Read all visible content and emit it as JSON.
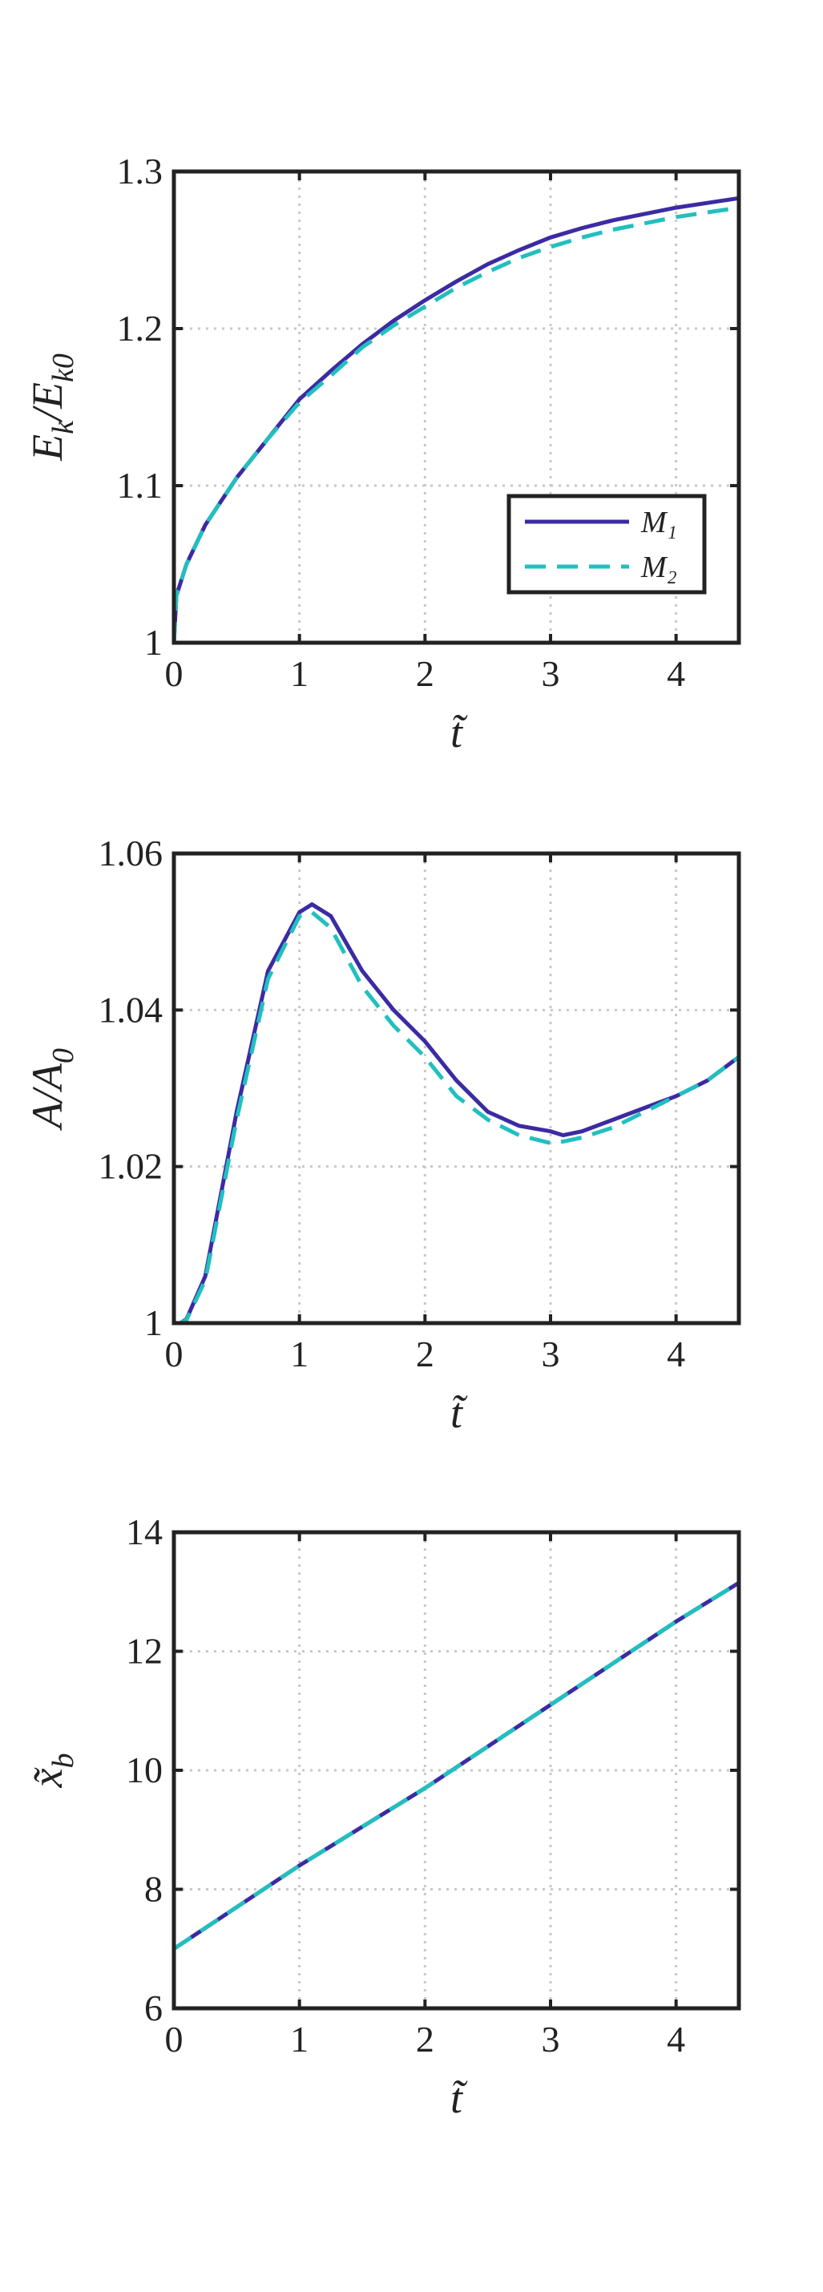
{
  "chart_data": [
    {
      "type": "line",
      "ylabel": [
        {
          "t": "E"
        },
        {
          "t": "k",
          "sub": true
        },
        {
          "t": "/E"
        },
        {
          "t": "k0",
          "sub": true
        }
      ],
      "xlabel": "t̃",
      "x": [
        0,
        0.02,
        0.1,
        0.25,
        0.5,
        0.75,
        1,
        1.25,
        1.5,
        1.75,
        2,
        2.25,
        2.5,
        2.75,
        3,
        3.25,
        3.5,
        3.75,
        4,
        4.25,
        4.5
      ],
      "series": [
        {
          "name": "M₁",
          "color": "#3b2ba3",
          "dash": false,
          "values": [
            1,
            1.03,
            1.05,
            1.075,
            1.105,
            1.13,
            1.155,
            1.173,
            1.19,
            1.205,
            1.218,
            1.23,
            1.241,
            1.25,
            1.258,
            1.264,
            1.269,
            1.273,
            1.277,
            1.28,
            1.283
          ]
        },
        {
          "name": "M₂",
          "color": "#22bfbf",
          "dash": true,
          "values": [
            1,
            1.03,
            1.05,
            1.075,
            1.105,
            1.13,
            1.153,
            1.17,
            1.188,
            1.202,
            1.214,
            1.226,
            1.236,
            1.245,
            1.252,
            1.258,
            1.263,
            1.267,
            1.271,
            1.274,
            1.277
          ]
        }
      ],
      "xlim": [
        0,
        4.5
      ],
      "xticks": [
        0,
        1,
        2,
        3,
        4
      ],
      "ylim": [
        1,
        1.3
      ],
      "yticks": [
        1,
        1.1,
        1.2,
        1.3
      ],
      "grid": true,
      "legend": "lower right"
    },
    {
      "type": "line",
      "ylabel": [
        {
          "t": "A/A"
        },
        {
          "t": "0",
          "sub": true
        }
      ],
      "xlabel": "t̃",
      "x": [
        0,
        0.05,
        0.1,
        0.25,
        0.5,
        0.75,
        1,
        1.1,
        1.25,
        1.5,
        1.75,
        2,
        2.25,
        2.5,
        2.75,
        3,
        3.1,
        3.25,
        3.5,
        3.75,
        4,
        4.25,
        4.5
      ],
      "series": [
        {
          "name": "M₁",
          "color": "#3b2ba3",
          "dash": false,
          "values": [
            1,
            1,
            1.0005,
            1.006,
            1.027,
            1.045,
            1.0525,
            1.0535,
            1.052,
            1.045,
            1.04,
            1.036,
            1.031,
            1.027,
            1.0252,
            1.0245,
            1.024,
            1.0245,
            1.026,
            1.0275,
            1.029,
            1.031,
            1.034
          ]
        },
        {
          "name": "M₂",
          "color": "#22bfbf",
          "dash": true,
          "values": [
            1,
            1,
            1.0004,
            1.0055,
            1.026,
            1.044,
            1.052,
            1.0525,
            1.0505,
            1.043,
            1.038,
            1.034,
            1.029,
            1.026,
            1.024,
            1.023,
            1.0232,
            1.0237,
            1.025,
            1.027,
            1.029,
            1.031,
            1.034
          ]
        }
      ],
      "xlim": [
        0,
        4.5
      ],
      "xticks": [
        0,
        1,
        2,
        3,
        4
      ],
      "ylim": [
        1,
        1.06
      ],
      "yticks": [
        1,
        1.02,
        1.04,
        1.06
      ],
      "grid": true
    },
    {
      "type": "line",
      "ylabel": [
        {
          "t": "x̃"
        },
        {
          "t": "b",
          "sub": true
        }
      ],
      "xlabel": "t̃",
      "x": [
        0,
        0.5,
        1,
        1.5,
        2,
        2.5,
        3,
        3.5,
        4,
        4.5
      ],
      "series": [
        {
          "name": "M₁",
          "color": "#3b2ba3",
          "dash": false,
          "values": [
            7,
            7.7,
            8.4,
            9.05,
            9.7,
            10.4,
            11.1,
            11.8,
            12.5,
            13.15
          ]
        },
        {
          "name": "M₂",
          "color": "#22bfbf",
          "dash": true,
          "values": [
            7,
            7.7,
            8.4,
            9.05,
            9.7,
            10.4,
            11.1,
            11.8,
            12.5,
            13.15
          ]
        }
      ],
      "xlim": [
        0,
        4.5
      ],
      "xticks": [
        0,
        1,
        2,
        3,
        4
      ],
      "ylim": [
        6,
        14
      ],
      "yticks": [
        6,
        8,
        10,
        12,
        14
      ],
      "grid": true
    }
  ]
}
